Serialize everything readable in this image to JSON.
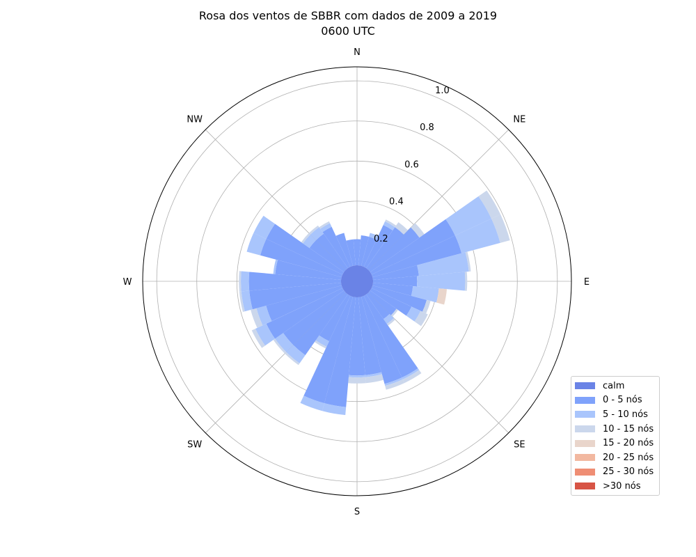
{
  "chart_data": {
    "type": "windrose",
    "title": "Rosa dos ventos de SBBR com dados de 2009 a 2019",
    "subtitle": "0600 UTC",
    "direction_labels": [
      "N",
      "NE",
      "E",
      "SE",
      "S",
      "SW",
      "W",
      "NW"
    ],
    "radial_ticks": [
      0.2,
      0.4,
      0.6,
      0.8,
      1.0
    ],
    "rlim": [
      0,
      1.07
    ],
    "n_sectors": 36,
    "calm": 0.08,
    "directions_deg": [
      0,
      10,
      20,
      30,
      40,
      50,
      60,
      70,
      80,
      90,
      100,
      110,
      120,
      130,
      140,
      150,
      160,
      170,
      180,
      190,
      200,
      210,
      220,
      230,
      240,
      250,
      260,
      270,
      280,
      290,
      300,
      310,
      320,
      330,
      340,
      350
    ],
    "series": [
      {
        "name": "calm",
        "color": "#6a83e6"
      },
      {
        "name": "0 - 5 nós",
        "color": "#7fa2fb",
        "values": [
          0.13,
          0.15,
          0.15,
          0.23,
          0.25,
          0.3,
          0.46,
          0.46,
          0.23,
          0.22,
          0.2,
          0.28,
          0.22,
          0.16,
          0.15,
          0.45,
          0.45,
          0.39,
          0.39,
          0.55,
          0.55,
          0.25,
          0.37,
          0.37,
          0.42,
          0.39,
          0.46,
          0.46,
          0.33,
          0.42,
          0.42,
          0.21,
          0.21,
          0.22,
          0.17,
          0.13
        ]
      },
      {
        "name": "5 - 10 nós",
        "color": "#a9c5fc",
        "values": [
          0.0,
          0.0,
          0.02,
          0.02,
          0.0,
          0.0,
          0.2,
          0.2,
          0.25,
          0.24,
          0.13,
          0.0,
          0.05,
          0.0,
          0.03,
          0.01,
          0.01,
          0.01,
          0.01,
          0.04,
          0.04,
          0.03,
          0.05,
          0.05,
          0.06,
          0.05,
          0.04,
          0.04,
          0.01,
          0.07,
          0.07,
          0.04,
          0.04,
          0.02,
          0.0,
          0.0
        ]
      },
      {
        "name": "10 - 15 nós",
        "color": "#cbd7ec",
        "values": [
          0.0,
          0.0,
          0.0,
          0.01,
          0.03,
          0.03,
          0.05,
          0.05,
          0.01,
          0.01,
          0.0,
          0.02,
          0.04,
          0.01,
          0.01,
          0.02,
          0.02,
          0.03,
          0.03,
          0.0,
          0.0,
          0.01,
          0.01,
          0.01,
          0.02,
          0.03,
          0.01,
          0.01,
          0.0,
          0.0,
          0.0,
          0.01,
          0.01,
          0.01,
          0.0,
          0.0
        ]
      },
      {
        "name": "15 - 20 nós",
        "color": "#e9d5cb",
        "values": [
          0,
          0,
          0,
          0,
          0,
          0,
          0,
          0,
          0,
          0,
          0.04,
          0,
          0,
          0,
          0,
          0,
          0,
          0,
          0,
          0,
          0,
          0,
          0,
          0,
          0,
          0,
          0,
          0,
          0,
          0,
          0,
          0,
          0,
          0,
          0,
          0
        ]
      },
      {
        "name": "20 - 25 nós",
        "color": "#f2b8a0",
        "values": [
          0,
          0,
          0,
          0,
          0,
          0,
          0,
          0,
          0,
          0,
          0,
          0,
          0,
          0,
          0,
          0,
          0,
          0,
          0,
          0,
          0,
          0,
          0,
          0,
          0,
          0,
          0,
          0,
          0,
          0,
          0,
          0,
          0,
          0,
          0,
          0
        ]
      },
      {
        "name": "25 - 30 nós",
        "color": "#ef8e74",
        "values": [
          0,
          0,
          0,
          0,
          0,
          0,
          0,
          0,
          0,
          0,
          0,
          0,
          0,
          0,
          0,
          0,
          0,
          0,
          0,
          0,
          0,
          0,
          0,
          0,
          0,
          0,
          0,
          0,
          0,
          0,
          0,
          0,
          0,
          0,
          0,
          0
        ]
      },
      {
        "name": ">30 nós",
        "color": "#d75445",
        "values": [
          0,
          0,
          0,
          0,
          0,
          0,
          0,
          0,
          0,
          0,
          0,
          0,
          0,
          0,
          0,
          0,
          0,
          0,
          0,
          0,
          0,
          0,
          0,
          0,
          0,
          0,
          0,
          0,
          0,
          0,
          0,
          0,
          0,
          0,
          0,
          0
        ]
      }
    ],
    "legend_position": "lower-right",
    "grid": true
  }
}
